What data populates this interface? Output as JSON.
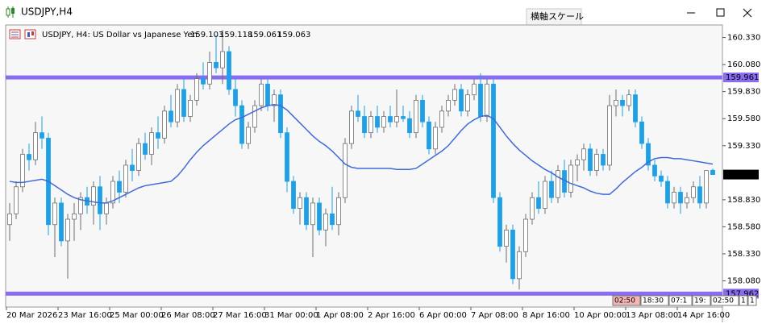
{
  "window": {
    "title": "USDJPY,H4",
    "tooltip": "横軸スケール"
  },
  "chart_data": {
    "type": "candlestick",
    "title": "USDJPY, H4:  US Dollar vs Japanese Yen",
    "ylim": [
      157.838,
      160.446
    ],
    "yticks": [
      {
        "value": 160.33,
        "label": "160.330"
      },
      {
        "value": 160.08,
        "label": "160.080"
      },
      {
        "value": 159.83,
        "label": "159.830"
      },
      {
        "value": 159.58,
        "label": "159.580"
      },
      {
        "value": 159.33,
        "label": "159.330"
      },
      {
        "value": 158.83,
        "label": "158.830"
      },
      {
        "value": 158.58,
        "label": "158.580"
      },
      {
        "value": 158.33,
        "label": "158.330"
      },
      {
        "value": 158.08,
        "label": "158.080"
      }
    ],
    "colors": {
      "up": "#ffffff",
      "up_border": "#6e6e6e",
      "down": "#1ea0e6",
      "ma": "#3f6ad8",
      "level": "#8a6cf0"
    },
    "levels": [
      159.961,
      157.962
    ],
    "categories": [
      "20 Mar 2026",
      null,
      null,
      null,
      null,
      null,
      null,
      null,
      "23 Mar 16:00",
      null,
      null,
      null,
      null,
      null,
      null,
      null,
      "25 Mar 00:00",
      null,
      null,
      null,
      null,
      null,
      null,
      null,
      "26 Mar 08:00",
      null,
      null,
      null,
      null,
      null,
      null,
      null,
      "27 Mar 16:00",
      null,
      null,
      null,
      null,
      null,
      null,
      null,
      "31 Mar 00:00",
      null,
      null,
      null,
      null,
      null,
      null,
      null,
      "1 Apr 08:00",
      null,
      null,
      null,
      null,
      null,
      null,
      null,
      "2 Apr 16:00",
      null,
      null,
      null,
      null,
      null,
      null,
      null,
      "6 Apr 00:00",
      null,
      null,
      null,
      null,
      null,
      null,
      null,
      "7 Apr 08:00",
      null,
      null,
      null,
      null,
      null,
      null,
      null,
      "8 Apr 16:00",
      null,
      null,
      null,
      null,
      null,
      null,
      null,
      "10 Apr 00:00",
      null,
      null,
      null,
      null,
      null,
      null,
      null,
      "13 Apr 08:00",
      null,
      null,
      null,
      null,
      null,
      null,
      null,
      "14 Apr 16:00",
      null,
      null,
      null,
      null,
      null
    ],
    "ohlc": [
      [
        158.6,
        158.8,
        158.45,
        158.7
      ],
      [
        158.7,
        159.0,
        158.65,
        158.95
      ],
      [
        158.95,
        159.3,
        158.9,
        159.25
      ],
      [
        159.25,
        159.35,
        159.1,
        159.2
      ],
      [
        159.2,
        159.55,
        159.15,
        159.45
      ],
      [
        159.45,
        159.6,
        159.3,
        159.4
      ],
      [
        159.4,
        159.45,
        158.5,
        158.6
      ],
      [
        158.6,
        158.85,
        158.3,
        158.8
      ],
      [
        158.8,
        158.85,
        158.4,
        158.45
      ],
      [
        158.45,
        158.7,
        158.1,
        158.65
      ],
      [
        158.65,
        158.8,
        158.45,
        158.7
      ],
      [
        158.7,
        158.9,
        158.55,
        158.85
      ],
      [
        158.85,
        158.95,
        158.7,
        158.78
      ],
      [
        158.78,
        159.0,
        158.6,
        158.95
      ],
      [
        158.95,
        159.05,
        158.55,
        158.7
      ],
      [
        158.7,
        158.85,
        158.6,
        158.8
      ],
      [
        158.8,
        159.05,
        158.75,
        159.0
      ],
      [
        159.0,
        159.1,
        158.8,
        158.9
      ],
      [
        158.9,
        159.2,
        158.85,
        159.15
      ],
      [
        159.15,
        159.3,
        159.0,
        159.1
      ],
      [
        159.1,
        159.4,
        159.05,
        159.35
      ],
      [
        159.35,
        159.45,
        159.2,
        159.25
      ],
      [
        159.25,
        159.5,
        159.15,
        159.45
      ],
      [
        159.45,
        159.6,
        159.3,
        159.4
      ],
      [
        159.4,
        159.7,
        159.35,
        159.65
      ],
      [
        159.65,
        159.8,
        159.5,
        159.55
      ],
      [
        159.55,
        159.9,
        159.5,
        159.85
      ],
      [
        159.85,
        159.95,
        159.55,
        159.6
      ],
      [
        159.6,
        159.8,
        159.55,
        159.75
      ],
      [
        159.75,
        160.0,
        159.7,
        159.95
      ],
      [
        159.95,
        160.1,
        159.85,
        159.9
      ],
      [
        159.9,
        160.2,
        159.85,
        160.1
      ],
      [
        160.1,
        160.35,
        160.0,
        160.05
      ],
      [
        160.05,
        160.4,
        159.9,
        160.2
      ],
      [
        160.2,
        160.25,
        159.8,
        159.85
      ],
      [
        159.85,
        159.95,
        159.6,
        159.7
      ],
      [
        159.7,
        159.75,
        159.3,
        159.35
      ],
      [
        159.35,
        159.55,
        159.3,
        159.5
      ],
      [
        159.5,
        159.75,
        159.45,
        159.7
      ],
      [
        159.7,
        159.95,
        159.65,
        159.9
      ],
      [
        159.9,
        159.95,
        159.65,
        159.7
      ],
      [
        159.7,
        159.85,
        159.55,
        159.8
      ],
      [
        159.8,
        159.85,
        159.4,
        159.45
      ],
      [
        159.45,
        159.5,
        158.9,
        159.0
      ],
      [
        159.0,
        159.05,
        158.7,
        158.75
      ],
      [
        158.75,
        158.9,
        158.6,
        158.85
      ],
      [
        158.85,
        158.9,
        158.55,
        158.6
      ],
      [
        158.6,
        158.85,
        158.3,
        158.8
      ],
      [
        158.8,
        158.85,
        158.5,
        158.55
      ],
      [
        158.55,
        158.75,
        158.4,
        158.7
      ],
      [
        158.7,
        158.95,
        158.55,
        158.6
      ],
      [
        158.6,
        158.9,
        158.5,
        158.85
      ],
      [
        158.85,
        159.4,
        158.8,
        159.35
      ],
      [
        159.35,
        159.7,
        159.3,
        159.65
      ],
      [
        159.65,
        159.8,
        159.55,
        159.6
      ],
      [
        159.6,
        159.7,
        159.4,
        159.45
      ],
      [
        159.45,
        159.65,
        159.4,
        159.6
      ],
      [
        159.6,
        159.7,
        159.45,
        159.5
      ],
      [
        159.5,
        159.65,
        159.45,
        159.6
      ],
      [
        159.6,
        159.7,
        159.5,
        159.55
      ],
      [
        159.55,
        159.85,
        159.5,
        159.6
      ],
      [
        159.6,
        159.7,
        159.55,
        159.58
      ],
      [
        159.58,
        159.65,
        159.4,
        159.45
      ],
      [
        159.45,
        159.8,
        159.4,
        159.75
      ],
      [
        159.75,
        159.8,
        159.5,
        159.55
      ],
      [
        159.55,
        159.6,
        159.25,
        159.3
      ],
      [
        159.3,
        159.55,
        159.25,
        159.5
      ],
      [
        159.5,
        159.7,
        159.45,
        159.65
      ],
      [
        159.65,
        159.8,
        159.6,
        159.75
      ],
      [
        159.75,
        159.9,
        159.7,
        159.85
      ],
      [
        159.85,
        159.9,
        159.6,
        159.65
      ],
      [
        159.65,
        159.85,
        159.6,
        159.8
      ],
      [
        159.8,
        159.95,
        159.75,
        159.9
      ],
      [
        159.9,
        160.0,
        159.55,
        159.6
      ],
      [
        159.6,
        159.95,
        159.55,
        159.9
      ],
      [
        159.9,
        159.95,
        158.8,
        158.85
      ],
      [
        158.85,
        158.9,
        158.35,
        158.4
      ],
      [
        158.4,
        158.6,
        158.25,
        158.55
      ],
      [
        158.55,
        158.6,
        158.05,
        158.1
      ],
      [
        158.1,
        158.4,
        158.0,
        158.35
      ],
      [
        158.35,
        158.7,
        158.3,
        158.65
      ],
      [
        158.65,
        158.9,
        158.6,
        158.85
      ],
      [
        158.85,
        159.0,
        158.7,
        158.75
      ],
      [
        158.75,
        159.05,
        158.7,
        159.0
      ],
      [
        159.0,
        159.1,
        158.8,
        158.85
      ],
      [
        158.85,
        159.15,
        158.8,
        159.1
      ],
      [
        159.1,
        159.2,
        158.85,
        158.9
      ],
      [
        158.9,
        159.2,
        158.85,
        159.15
      ],
      [
        159.15,
        159.25,
        159.0,
        159.2
      ],
      [
        159.2,
        159.35,
        159.1,
        159.3
      ],
      [
        159.3,
        159.35,
        159.05,
        159.1
      ],
      [
        159.1,
        159.3,
        159.05,
        159.25
      ],
      [
        159.25,
        159.3,
        159.1,
        159.15
      ],
      [
        159.15,
        159.8,
        159.1,
        159.7
      ],
      [
        159.7,
        159.85,
        159.6,
        159.75
      ],
      [
        159.75,
        159.8,
        159.6,
        159.7
      ],
      [
        159.7,
        159.85,
        159.65,
        159.8
      ],
      [
        159.8,
        159.85,
        159.5,
        159.55
      ],
      [
        159.55,
        159.6,
        159.3,
        159.35
      ],
      [
        159.35,
        159.4,
        159.1,
        159.15
      ],
      [
        159.15,
        159.2,
        159.0,
        159.05
      ],
      [
        159.05,
        159.1,
        158.95,
        159.0
      ],
      [
        159.0,
        159.05,
        158.75,
        158.8
      ],
      [
        158.8,
        158.95,
        158.75,
        158.9
      ],
      [
        158.9,
        158.95,
        158.7,
        158.8
      ],
      [
        158.8,
        158.9,
        158.75,
        158.85
      ],
      [
        158.85,
        159.0,
        158.8,
        158.95
      ],
      [
        158.95,
        159.05,
        158.75,
        158.8
      ],
      [
        158.8,
        159.1,
        158.75,
        159.1
      ],
      [
        159.103,
        159.118,
        159.061,
        159.063
      ]
    ],
    "ma": [
      159.0,
      158.99,
      158.99,
      159.0,
      159.01,
      159.02,
      159.0,
      158.96,
      158.92,
      158.88,
      158.85,
      158.83,
      158.82,
      158.81,
      158.8,
      158.8,
      158.82,
      158.85,
      158.88,
      158.91,
      158.94,
      158.96,
      158.97,
      158.98,
      158.99,
      159.0,
      159.05,
      159.12,
      159.2,
      159.27,
      159.33,
      159.38,
      159.43,
      159.48,
      159.53,
      159.57,
      159.59,
      159.62,
      159.65,
      159.68,
      159.7,
      159.71,
      159.7,
      159.66,
      159.6,
      159.54,
      159.48,
      159.42,
      159.37,
      159.33,
      159.28,
      159.22,
      159.16,
      159.13,
      159.12,
      159.12,
      159.12,
      159.12,
      159.12,
      159.12,
      159.11,
      159.11,
      159.11,
      159.12,
      159.16,
      159.2,
      159.24,
      159.28,
      159.33,
      159.4,
      159.47,
      159.53,
      159.57,
      159.6,
      159.61,
      159.58,
      159.5,
      159.42,
      159.35,
      159.29,
      159.24,
      159.19,
      159.15,
      159.11,
      159.08,
      159.04,
      159.01,
      158.98,
      158.96,
      158.94,
      158.91,
      158.89,
      158.88,
      158.88,
      158.93,
      158.99,
      159.04,
      159.09,
      159.13,
      159.18,
      159.21,
      159.22,
      159.22,
      159.21,
      159.21,
      159.2,
      159.19,
      159.18,
      159.17,
      159.16
    ],
    "time_markers": [
      "02:50",
      "18:30",
      "07:1",
      "19:",
      "02:50",
      "1",
      "1"
    ]
  }
}
